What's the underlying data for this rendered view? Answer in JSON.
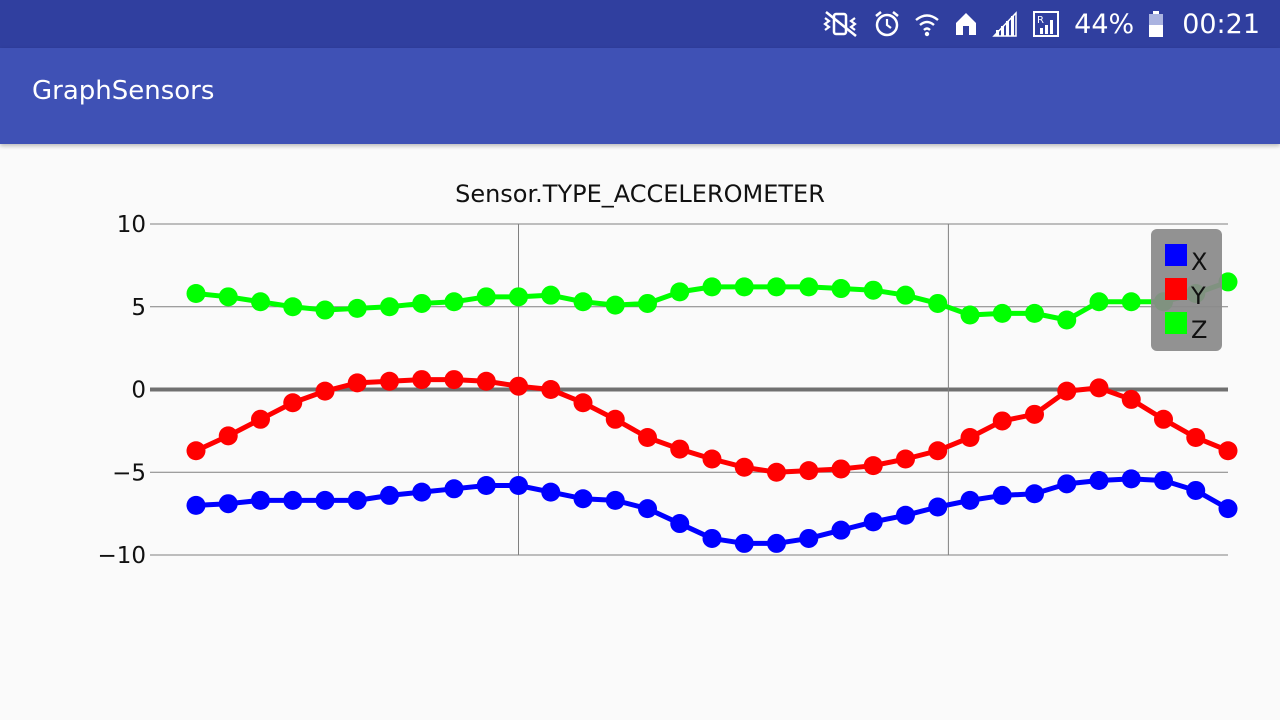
{
  "status_bar": {
    "battery_percent": "44%",
    "time": "00:21",
    "icons": [
      "vibrate-mute-icon",
      "alarm-icon",
      "wifi-icon",
      "home-icon",
      "signal-icon",
      "roaming-signal-icon",
      "battery-icon"
    ],
    "background": "#303f9f"
  },
  "app_bar": {
    "title": "GraphSensors",
    "background": "#3f51b5"
  },
  "chart_data": {
    "type": "line",
    "title": "Sensor.TYPE_ACCELEROMETER",
    "xlabel": "",
    "ylabel": "",
    "ylim": [
      -10,
      10
    ],
    "yticks": [
      10,
      5,
      0,
      -5,
      -10
    ],
    "ytick_labels": [
      "10",
      "5",
      "0",
      "−5",
      "−10"
    ],
    "xlim": [
      0,
      32
    ],
    "x_gridlines": [
      10,
      23.33
    ],
    "grid": true,
    "legend": "top-right",
    "x": [
      0,
      1,
      2,
      3,
      4,
      5,
      6,
      7,
      8,
      9,
      10,
      11,
      12,
      13,
      14,
      15,
      16,
      17,
      18,
      19,
      20,
      21,
      22,
      23,
      24,
      25,
      26,
      27,
      28,
      29,
      30,
      31,
      32
    ],
    "series": [
      {
        "name": "X",
        "color": "#0000ff",
        "values": [
          -7.0,
          -6.9,
          -6.7,
          -6.7,
          -6.7,
          -6.7,
          -6.4,
          -6.2,
          -6.0,
          -5.8,
          -5.8,
          -6.2,
          -6.6,
          -6.7,
          -7.2,
          -8.1,
          -9.0,
          -9.3,
          -9.3,
          -9.0,
          -8.5,
          -8.0,
          -7.6,
          -7.1,
          -6.7,
          -6.4,
          -6.3,
          -5.7,
          -5.5,
          -5.4,
          -5.5,
          -6.1,
          -7.2
        ]
      },
      {
        "name": "Y",
        "color": "#ff0000",
        "values": [
          -3.7,
          -2.8,
          -1.8,
          -0.8,
          -0.1,
          0.4,
          0.5,
          0.6,
          0.6,
          0.5,
          0.2,
          0.0,
          -0.8,
          -1.8,
          -2.9,
          -3.6,
          -4.2,
          -4.7,
          -5.0,
          -4.9,
          -4.8,
          -4.6,
          -4.2,
          -3.7,
          -2.9,
          -1.9,
          -1.5,
          -0.1,
          0.1,
          -0.6,
          -1.8,
          -2.9,
          -3.7
        ]
      },
      {
        "name": "Z",
        "color": "#00ff00",
        "values": [
          5.8,
          5.6,
          5.3,
          5.0,
          4.8,
          4.9,
          5.0,
          5.2,
          5.3,
          5.6,
          5.6,
          5.7,
          5.3,
          5.1,
          5.2,
          5.9,
          6.2,
          6.2,
          6.2,
          6.2,
          6.1,
          6.0,
          5.7,
          5.2,
          4.5,
          4.6,
          4.6,
          4.2,
          5.3,
          5.3,
          5.3,
          5.8,
          6.5
        ]
      }
    ],
    "axis_color": "#707070",
    "legend_background": "#8a8a8a"
  }
}
